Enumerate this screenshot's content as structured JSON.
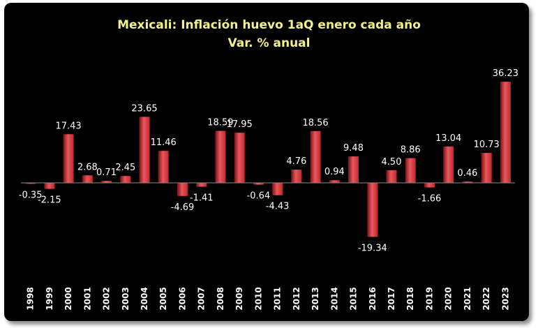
{
  "chart_data": {
    "type": "bar",
    "title": "Mexicali: Inflación huevo 1aQ enero cada año",
    "subtitle": "Var. % anual",
    "categories": [
      "1998",
      "1999",
      "2000",
      "2001",
      "2002",
      "2003",
      "2004",
      "2005",
      "2006",
      "2007",
      "2008",
      "2009",
      "2010",
      "2011",
      "2012",
      "2013",
      "2014",
      "2015",
      "2016",
      "2017",
      "2018",
      "2019",
      "2020",
      "2021",
      "2022",
      "2023"
    ],
    "values": [
      -0.35,
      -2.15,
      17.43,
      2.68,
      0.71,
      2.45,
      23.65,
      11.46,
      -4.69,
      -1.41,
      18.59,
      17.95,
      -0.64,
      -4.43,
      4.76,
      18.56,
      0.94,
      9.48,
      -19.34,
      4.5,
      8.86,
      -1.66,
      13.04,
      0.46,
      10.73,
      36.23
    ],
    "data_labels": [
      "-0.35",
      "-2.15",
      "17.43",
      "2.68",
      "0.71",
      "2.45",
      "23.65",
      "11.46",
      "-4.69",
      "-1.41",
      "18.59",
      "17.95",
      "-0.64",
      "-4.43",
      "4.76",
      "18.56",
      "0.94",
      "9.48",
      "-19.34",
      "4.50",
      "8.86",
      "-1.66",
      "13.04",
      "0.46",
      "10.73",
      "36.23"
    ],
    "xlabel": "",
    "ylabel": "",
    "ylim": [
      -22,
      40
    ],
    "grid": false,
    "legend": "none",
    "colors": {
      "background": "#000000",
      "bar": "#c0272d",
      "bar_highlight": "#e8585d",
      "bar_dark": "#7a1014",
      "title": "#f4f18a",
      "text": "#ffffff"
    }
  }
}
